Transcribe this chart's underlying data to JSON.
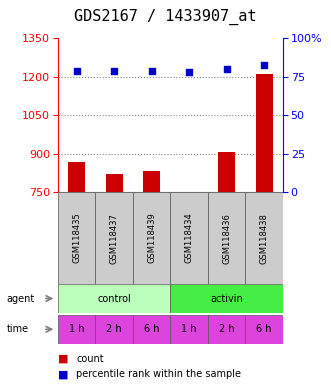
{
  "title": "GDS2167 / 1433907_at",
  "categories": [
    "GSM118435",
    "GSM118437",
    "GSM118439",
    "GSM118434",
    "GSM118436",
    "GSM118438"
  ],
  "bar_values": [
    868,
    820,
    832,
    748,
    905,
    1210
  ],
  "dot_values": [
    79,
    79,
    79,
    78,
    80,
    83
  ],
  "bar_color": "#cc0000",
  "dot_color": "#0000cc",
  "ylim_left": [
    750,
    1350
  ],
  "ylim_right": [
    0,
    100
  ],
  "yticks_left": [
    750,
    900,
    1050,
    1200,
    1350
  ],
  "yticks_right": [
    0,
    25,
    50,
    75,
    100
  ],
  "ytick_labels_right": [
    "0",
    "25",
    "50",
    "75",
    "100%"
  ],
  "agent_labels": [
    "control",
    "activin"
  ],
  "agent_color_light": "#bbffbb",
  "agent_color_dark": "#44ee44",
  "time_labels": [
    "1 h",
    "2 h",
    "6 h",
    "1 h",
    "2 h",
    "6 h"
  ],
  "time_color": "#dd44dd",
  "title_fontsize": 11,
  "tick_fontsize": 8,
  "label_fontsize": 7,
  "grid_color": "#888888",
  "background_color": "#ffffff",
  "sample_label_bg": "#cccccc"
}
